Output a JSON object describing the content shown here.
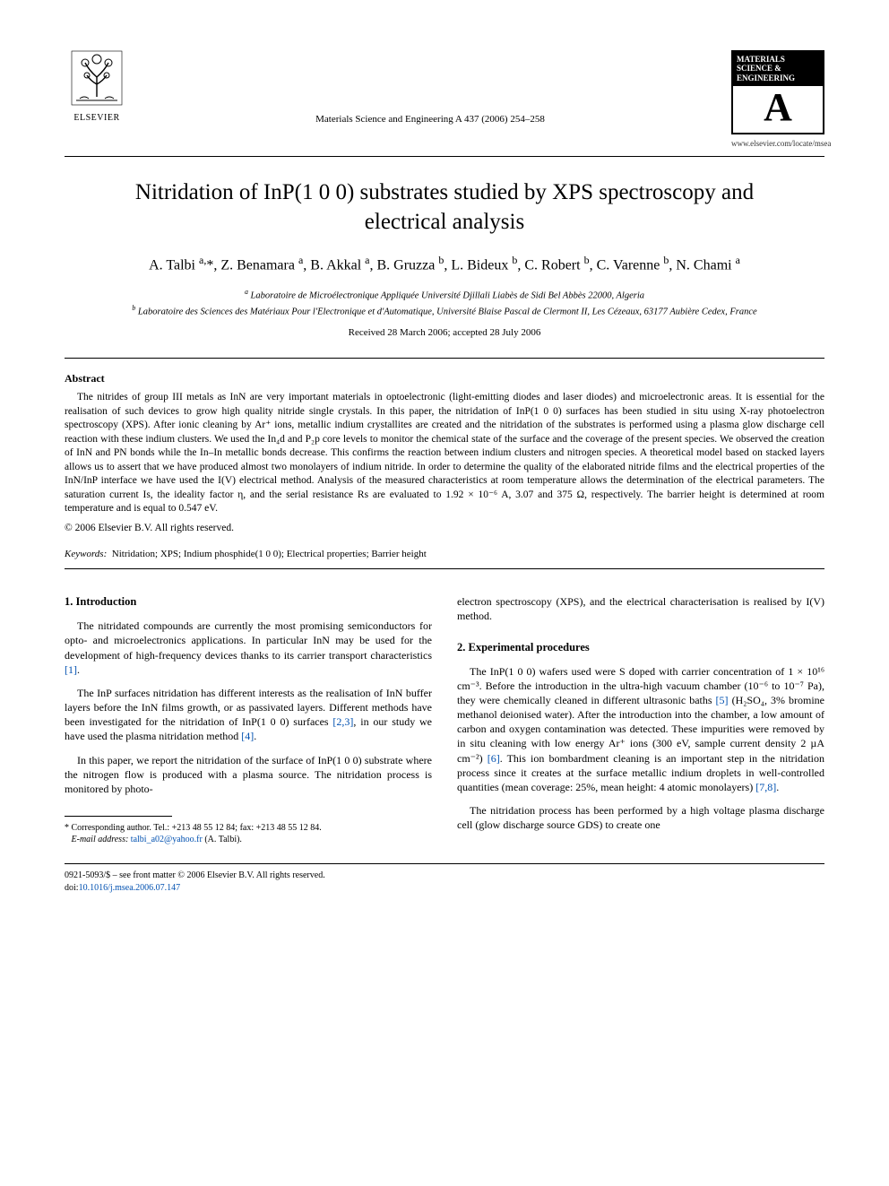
{
  "header": {
    "publisher_name": "ELSEVIER",
    "journal_ref": "Materials Science and Engineering A 437 (2006) 254–258",
    "badge_top": "MATERIALS SCIENCE & ENGINEERING",
    "badge_letter": "A",
    "badge_url": "www.elsevier.com/locate/msea"
  },
  "title": "Nitridation of InP(1 0 0) substrates studied by XPS spectroscopy and electrical analysis",
  "authors_html": "A. Talbi <sup>a,</sup>*, Z. Benamara <sup>a</sup>, B. Akkal <sup>a</sup>, B. Gruzza <sup>b</sup>, L. Bideux <sup>b</sup>, C. Robert <sup>b</sup>, C. Varenne <sup>b</sup>, N. Chami <sup>a</sup>",
  "affiliations": {
    "a": "Laboratoire de Microélectronique Appliquée Université Djillali Liabès de Sidi Bel Abbès 22000, Algeria",
    "b": "Laboratoire des Sciences des Matériaux Pour l'Electronique et d'Automatique, Université Blaise Pascal de Clermont II, Les Cézeaux, 63177 Aubière Cedex, France"
  },
  "dates": "Received 28 March 2006; accepted 28 July 2006",
  "abstract": {
    "label": "Abstract",
    "text": "The nitrides of group III metals as InN are very important materials in optoelectronic (light-emitting diodes and laser diodes) and microelectronic areas. It is essential for the realisation of such devices to grow high quality nitride single crystals. In this paper, the nitridation of InP(1 0 0) surfaces has been studied in situ using X-ray photoelectron spectroscopy (XPS). After ionic cleaning by Ar⁺ ions, metallic indium crystallites are created and the nitridation of the substrates is performed using a plasma glow discharge cell reaction with these indium clusters. We used the In₄d and P₂p core levels to monitor the chemical state of the surface and the coverage of the present species. We observed the creation of InN and PN bonds while the In–In metallic bonds decrease. This confirms the reaction between indium clusters and nitrogen species. A theoretical model based on stacked layers allows us to assert that we have produced almost two monolayers of indium nitride. In order to determine the quality of the elaborated nitride films and the electrical properties of the InN/InP interface we have used the I(V) electrical method. Analysis of the measured characteristics at room temperature allows the determination of the electrical parameters. The saturation current Is, the ideality factor η, and the serial resistance Rs are evaluated to 1.92 × 10⁻⁶ A, 3.07 and 375 Ω, respectively. The barrier height is determined at room temperature and is equal to 0.547 eV.",
    "copyright": "© 2006 Elsevier B.V. All rights reserved."
  },
  "keywords": {
    "label": "Keywords:",
    "values": "Nitridation; XPS; Indium phosphide(1 0 0); Electrical properties; Barrier height"
  },
  "sections": {
    "intro_heading": "1.  Introduction",
    "intro_p1": "The nitridated compounds are currently the most promising semiconductors for opto- and microelectronics applications. In particular InN may be used for the development of high-frequency devices thanks to its carrier transport characteristics ",
    "intro_ref1": "[1]",
    "intro_p1_end": ".",
    "intro_p2": "The InP surfaces nitridation has different interests as the realisation of InN buffer layers before the InN films growth, or as passivated layers. Different methods have been investigated for the nitridation of InP(1 0 0) surfaces ",
    "intro_ref23": "[2,3]",
    "intro_p2_mid": ", in our study we have used the plasma nitridation method ",
    "intro_ref4": "[4]",
    "intro_p2_end": ".",
    "intro_p3": "In this paper, we report the nitridation of the surface of InP(1 0 0) substrate where the nitrogen flow is produced with a plasma source. The nitridation process is monitored by photo-",
    "intro_p3_cont": "electron spectroscopy (XPS), and the electrical characterisation is realised by I(V) method.",
    "exp_heading": "2.  Experimental procedures",
    "exp_p1_a": "The InP(1 0 0) wafers used were S doped with carrier concentration of 1 × 10¹⁶ cm⁻³. Before the introduction in the ultra-high vacuum chamber (10⁻⁶ to 10⁻⁷ Pa), they were chemically cleaned in different ultrasonic baths ",
    "exp_ref5": "[5]",
    "exp_p1_b": " (H₂SO₄, 3% bromine methanol deionised water). After the introduction into the chamber, a low amount of carbon and oxygen contamination was detected. These impurities were removed by in situ cleaning with low energy Ar⁺ ions (300 eV, sample current density 2 µA cm⁻²) ",
    "exp_ref6": "[6]",
    "exp_p1_c": ". This ion bombardment cleaning is an important step in the nitridation process since it creates at the surface metallic indium droplets in well-controlled quantities (mean coverage: 25%, mean height: 4 atomic monolayers) ",
    "exp_ref78": "[7,8]",
    "exp_p1_d": ".",
    "exp_p2": "The nitridation process has been performed by a high voltage plasma discharge cell (glow discharge source GDS) to create one"
  },
  "footnote": {
    "line1": "* Corresponding author. Tel.: +213 48 55 12 84; fax: +213 48 55 12 84.",
    "email_label": "E-mail address:",
    "email": "talbi_a02@yahoo.fr",
    "email_tail": " (A. Talbi)."
  },
  "bottom": {
    "line1": "0921-5093/$ – see front matter © 2006 Elsevier B.V. All rights reserved.",
    "doi_label": "doi:",
    "doi": "10.1016/j.msea.2006.07.147"
  },
  "colors": {
    "link": "#0050b0",
    "text": "#000000",
    "bg": "#ffffff"
  }
}
